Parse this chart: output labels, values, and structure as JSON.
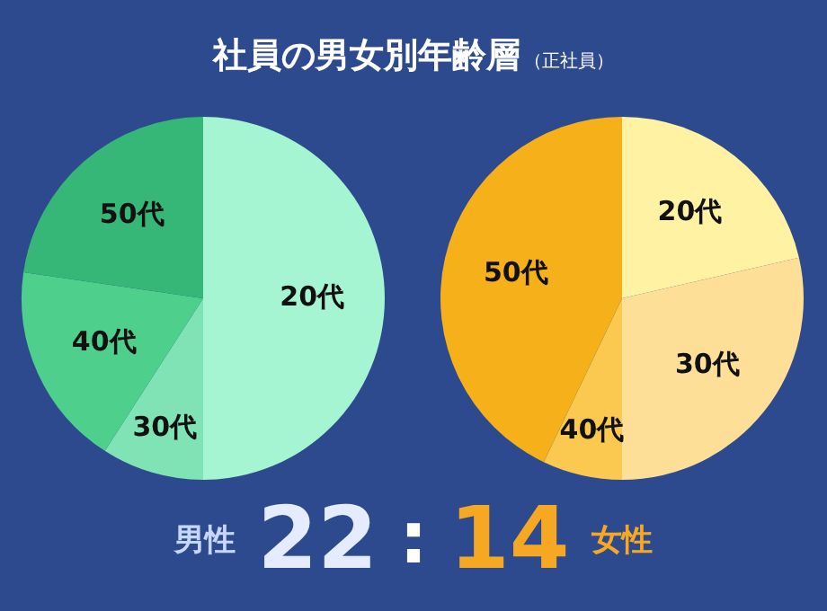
{
  "chart_data": [
    {
      "type": "other",
      "title": "社員の男女別年齢層",
      "subtitle": "（正社員）"
    },
    {
      "type": "pie",
      "categories": [
        "20代",
        "30代",
        "40代",
        "50代"
      ],
      "values": [
        50,
        9.1,
        18.2,
        22.7
      ],
      "colors": [
        "#a6f5d2",
        "#7fe3b5",
        "#4fcf8c",
        "#36b777"
      ]
    },
    {
      "type": "pie",
      "categories": [
        "20代",
        "30代",
        "40代",
        "50代"
      ],
      "values": [
        21.4,
        28.6,
        7.1,
        42.9
      ],
      "colors": [
        "#fff3a3",
        "#fedf98",
        "#fbc94f",
        "#f5b01a"
      ]
    },
    {
      "type": "other",
      "annotations": [
        "男性",
        "22",
        ":",
        "14",
        "女性"
      ]
    }
  ]
}
